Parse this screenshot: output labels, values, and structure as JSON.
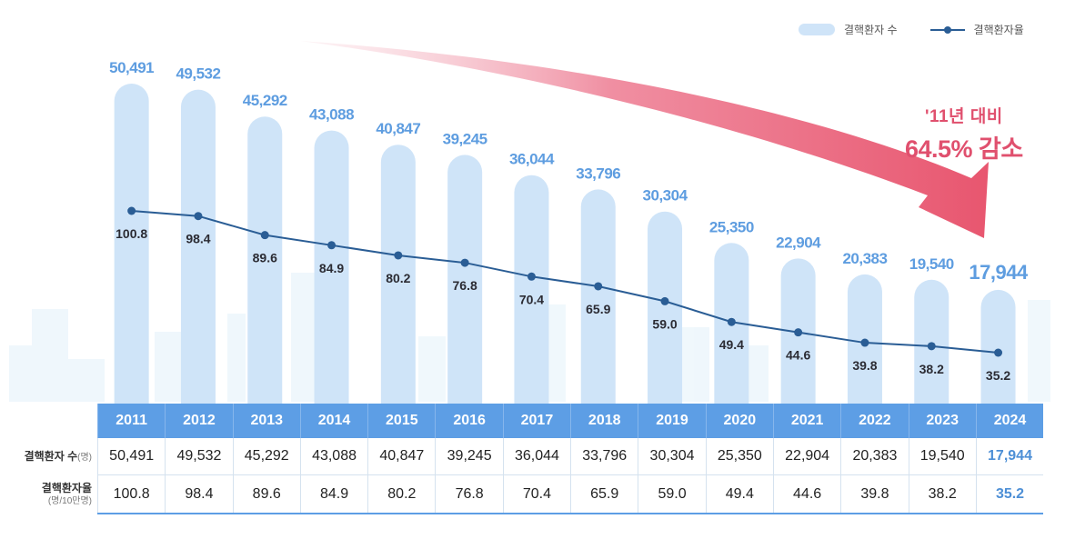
{
  "legend": {
    "bar_label": "결핵환자 수",
    "line_label": "결핵환자율"
  },
  "annotation": {
    "line1": "'11년 대비",
    "line2": "64.5% 감소"
  },
  "table": {
    "row_count_label": "결핵환자 수",
    "row_count_unit": "(명)",
    "row_rate_label": "결핵환자율",
    "row_rate_unit": "(명/10만명)"
  },
  "colors": {
    "bar": "#cfe4f8",
    "bar_label": "#5e9de0",
    "line": "#2a5d95",
    "header": "#5d9ee5",
    "arrow": "#e8566f"
  },
  "chart_data": {
    "type": "bar",
    "title": "",
    "xlabel": "",
    "ylabel": "",
    "categories": [
      "2011",
      "2012",
      "2013",
      "2014",
      "2015",
      "2016",
      "2017",
      "2018",
      "2019",
      "2020",
      "2021",
      "2022",
      "2023",
      "2024"
    ],
    "series": [
      {
        "name": "결핵환자 수",
        "type": "bar",
        "unit": "명",
        "values": [
          50491,
          49532,
          45292,
          43088,
          40847,
          39245,
          36044,
          33796,
          30304,
          25350,
          22904,
          20383,
          19540,
          17944
        ],
        "labels": [
          "50,491",
          "49,532",
          "45,292",
          "43,088",
          "40,847",
          "39,245",
          "36,044",
          "33,796",
          "30,304",
          "25,350",
          "22,904",
          "20,383",
          "19,540",
          "17,944"
        ]
      },
      {
        "name": "결핵환자율",
        "type": "line",
        "unit": "명/10만명",
        "values": [
          100.8,
          98.4,
          89.6,
          84.9,
          80.2,
          76.8,
          70.4,
          65.9,
          59.0,
          49.4,
          44.6,
          39.8,
          38.2,
          35.2
        ],
        "labels": [
          "100.8",
          "98.4",
          "89.6",
          "84.9",
          "80.2",
          "76.8",
          "70.4",
          "65.9",
          "59.0",
          "49.4",
          "44.6",
          "39.8",
          "38.2",
          "35.2"
        ]
      }
    ],
    "legend": "top-right",
    "grid": false,
    "annotation": "'11년 대비 64.5% 감소"
  }
}
